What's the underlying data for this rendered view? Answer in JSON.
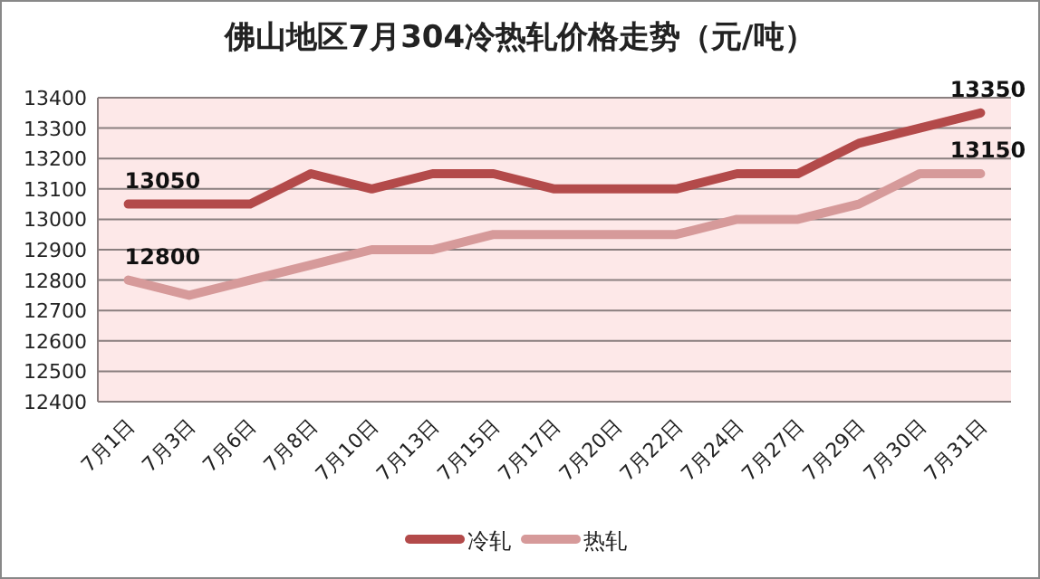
{
  "chart_data": {
    "type": "line",
    "title": "佛山地区7月304冷热轧价格走势（元/吨）",
    "categories": [
      "7月1日",
      "7月3日",
      "7月6日",
      "7月8日",
      "7月10日",
      "7月13日",
      "7月15日",
      "7月17日",
      "7月20日",
      "7月22日",
      "7月24日",
      "7月27日",
      "7月29日",
      "7月30日",
      "7月31日"
    ],
    "series": [
      {
        "name": "冷轧",
        "color": "#b34a4a",
        "values": [
          13050,
          13050,
          13050,
          13150,
          13100,
          13150,
          13150,
          13100,
          13100,
          13100,
          13150,
          13150,
          13250,
          13300,
          13350
        ],
        "value_labels": [
          "13050",
          null,
          null,
          null,
          null,
          null,
          null,
          null,
          null,
          null,
          null,
          null,
          null,
          null,
          "13350"
        ]
      },
      {
        "name": "热轧",
        "color": "#d69a9a",
        "values": [
          12800,
          12750,
          12800,
          12850,
          12900,
          12900,
          12950,
          12950,
          12950,
          12950,
          13000,
          13000,
          13050,
          13150,
          13150
        ],
        "value_labels": [
          "12800",
          null,
          null,
          null,
          null,
          null,
          null,
          null,
          null,
          null,
          null,
          null,
          null,
          null,
          "13150"
        ]
      }
    ],
    "ylim": [
      12400,
      13400
    ],
    "yticks": [
      12400,
      12500,
      12600,
      12700,
      12800,
      12900,
      13000,
      13100,
      13200,
      13300,
      13400
    ],
    "grid": "y",
    "legend": "bottom",
    "marker": "none",
    "line_style": "solid"
  }
}
